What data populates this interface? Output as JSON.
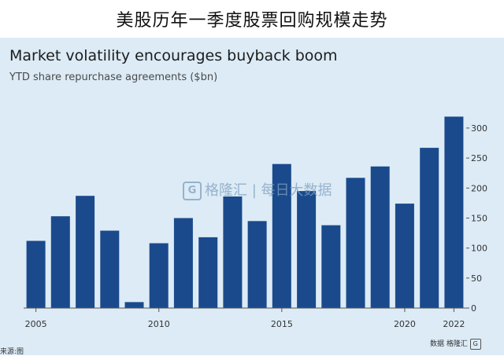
{
  "header": {
    "title": "美股历年一季度股票回购规模走势"
  },
  "watermark": {
    "text": "格隆汇  |  每日大数据"
  },
  "footer": {
    "left": "来源:图",
    "right": "数据  格隆汇"
  },
  "chart_data": {
    "type": "bar",
    "title": "Market volatility encourages buyback boom",
    "subtitle": "YTD share repurchase agreements ($bn)",
    "x": [
      2005,
      2006,
      2007,
      2008,
      2009,
      2010,
      2011,
      2012,
      2013,
      2014,
      2015,
      2016,
      2017,
      2018,
      2019,
      2020,
      2021,
      2022
    ],
    "values": [
      112,
      153,
      187,
      129,
      10,
      108,
      150,
      118,
      186,
      145,
      240,
      195,
      138,
      217,
      236,
      174,
      267,
      319
    ],
    "x_tick_labels": [
      "2005",
      "2010",
      "2015",
      "2020",
      "2022"
    ],
    "x_tick_years": [
      2005,
      2010,
      2015,
      2020,
      2022
    ],
    "y_ticks": [
      0,
      50,
      100,
      150,
      200,
      250,
      300
    ],
    "ylim": [
      0,
      330
    ],
    "y_axis_position": "right",
    "grid": false,
    "colors": {
      "bar": "#1a4a8c",
      "text": "#333333",
      "axis": "#555555"
    }
  }
}
